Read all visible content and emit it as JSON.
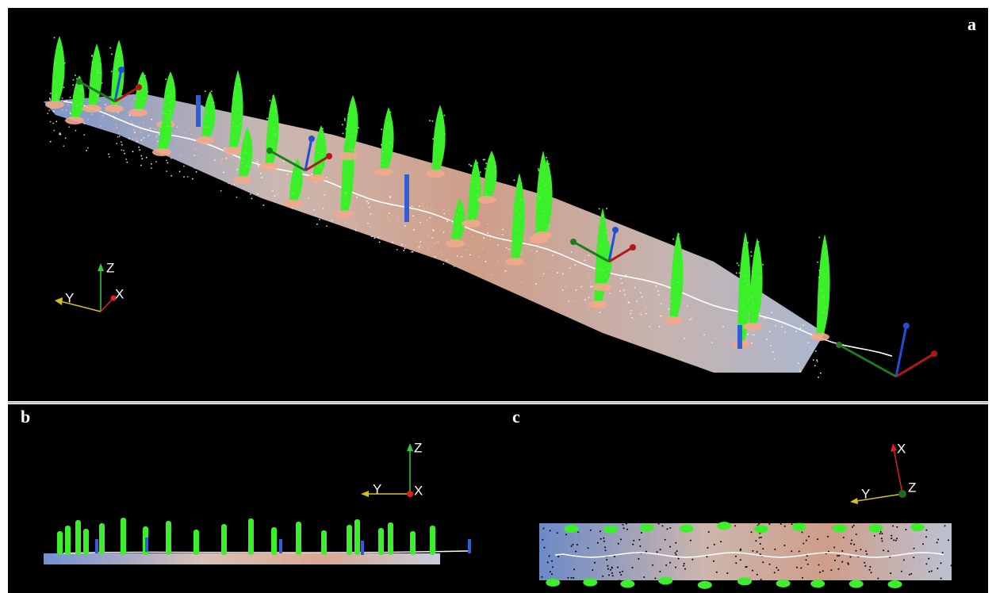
{
  "panels": [
    {
      "label": "a",
      "axes": [
        "Z",
        "Y",
        "X"
      ]
    },
    {
      "label": "b",
      "axes": [
        "Z",
        "Y",
        "X"
      ]
    },
    {
      "label": "c",
      "axes": [
        "X",
        "Y",
        "Z"
      ]
    }
  ]
}
